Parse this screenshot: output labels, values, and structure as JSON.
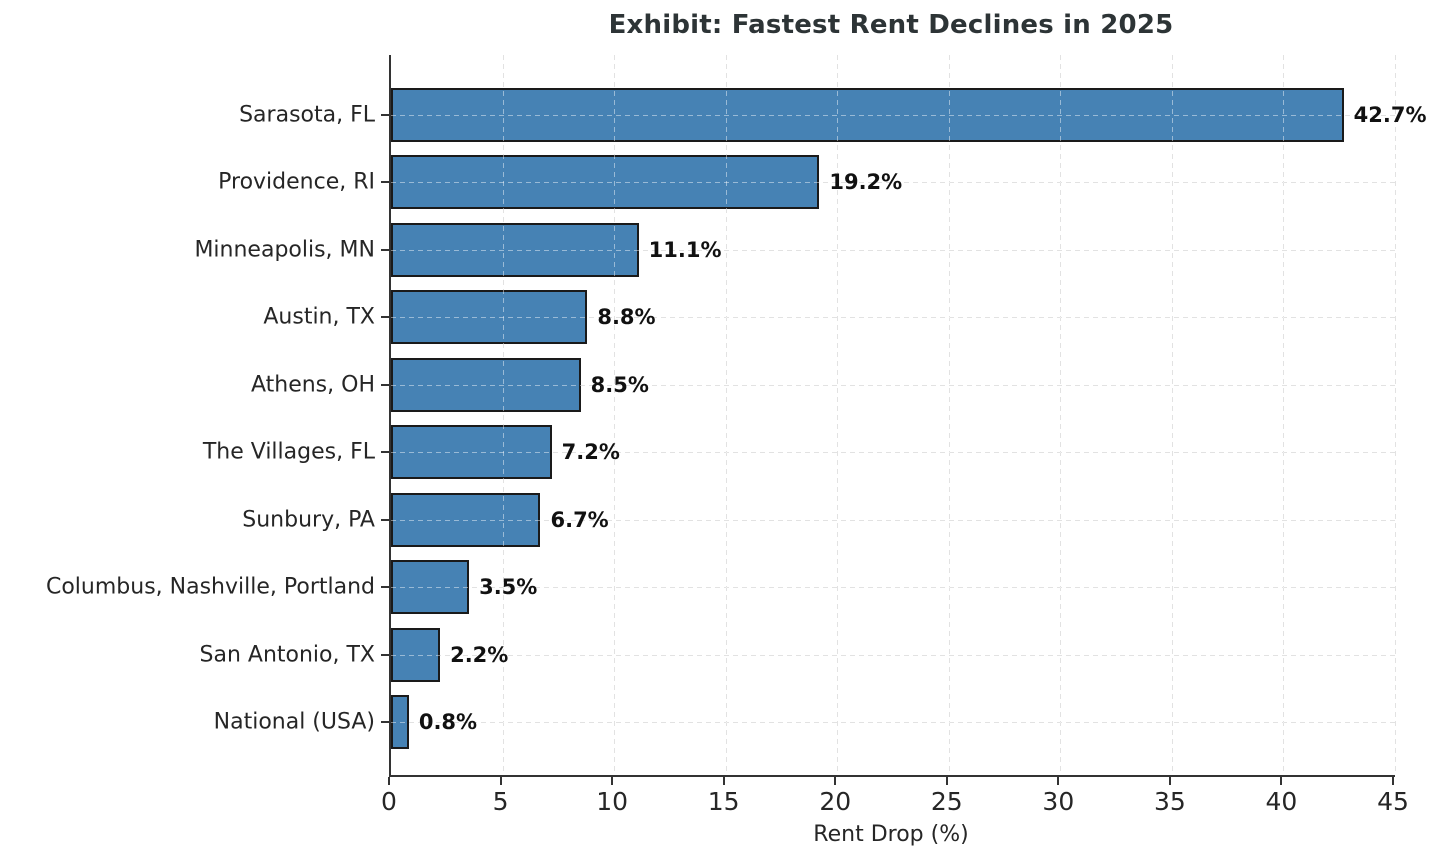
{
  "chart_data": {
    "type": "bar",
    "orientation": "horizontal",
    "title": "Exhibit: Fastest Rent Declines in 2025",
    "xlabel": "Rent Drop (%)",
    "categories": [
      "Sarasota, FL",
      "Providence, RI",
      "Minneapolis, MN",
      "Austin, TX",
      "Athens, OH",
      "The Villages, FL",
      "Sunbury, PA",
      "Columbus, Nashville, Portland",
      "San Antonio, TX",
      "National (USA)"
    ],
    "values": [
      42.7,
      19.2,
      11.1,
      8.8,
      8.5,
      7.2,
      6.7,
      3.5,
      2.2,
      0.8
    ],
    "value_labels": [
      "42.7%",
      "19.2%",
      "11.1%",
      "8.8%",
      "8.5%",
      "7.2%",
      "6.7%",
      "3.5%",
      "2.2%",
      "0.8%"
    ],
    "x_ticks": [
      0,
      5,
      10,
      15,
      20,
      25,
      30,
      35,
      40,
      45
    ],
    "xlim": [
      0,
      45
    ],
    "grid": "dashed-both-axes",
    "legend": "none",
    "colors": {
      "bar_fill": "#4682b4",
      "bar_edge": "#1a1a1a",
      "title_text": "#2d3436",
      "axis_text": "#262626",
      "spine": "#333333",
      "gridline": "#cbcbcb"
    }
  }
}
